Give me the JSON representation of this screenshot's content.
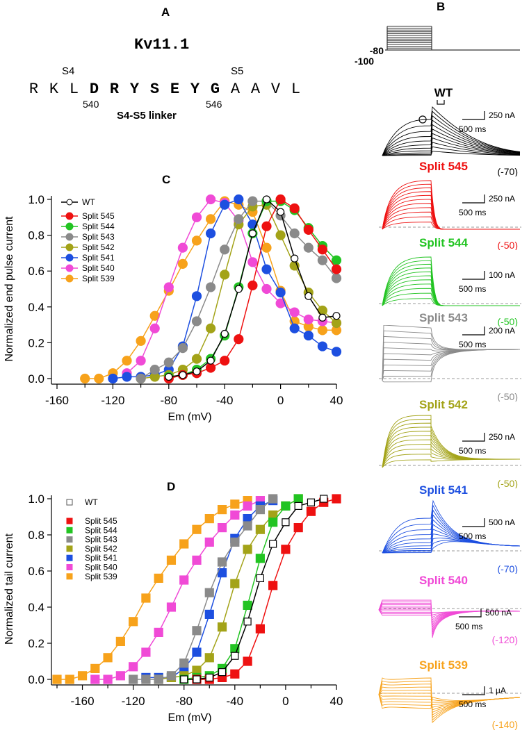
{
  "panelA": {
    "letter": "A",
    "protein": "Kv11.1",
    "s4_label": "S4",
    "s5_label": "S5",
    "sequence": [
      {
        "aa": "R",
        "bold": false
      },
      {
        "aa": "K",
        "bold": false
      },
      {
        "aa": "L",
        "bold": false
      },
      {
        "aa": "D",
        "bold": true
      },
      {
        "aa": "R",
        "bold": true
      },
      {
        "aa": "Y",
        "bold": true
      },
      {
        "aa": "S",
        "bold": true
      },
      {
        "aa": "E",
        "bold": true
      },
      {
        "aa": "Y",
        "bold": true
      },
      {
        "aa": "G",
        "bold": true
      },
      {
        "aa": "A",
        "bold": false
      },
      {
        "aa": "A",
        "bold": false
      },
      {
        "aa": "V",
        "bold": false
      },
      {
        "aa": "L",
        "bold": false
      }
    ],
    "pos_start": "540",
    "pos_end": "546",
    "linker_label": "S4-S5 linker"
  },
  "panelB": {
    "letter": "B",
    "protocol": {
      "hold_label": "-80",
      "tail_label": "-100"
    },
    "traces": [
      {
        "name": "WT",
        "color": "#000000",
        "amp_scale": "250 nA",
        "time_scale": "500 ms",
        "tail_v": "(-70)",
        "markers": [
          "circle",
          "square"
        ]
      },
      {
        "name": "Split 545",
        "color": "#ee1111",
        "amp_scale": "250 nA",
        "time_scale": "500 ms",
        "tail_v": "(-50)"
      },
      {
        "name": "Split 544",
        "color": "#22c422",
        "amp_scale": "100 nA",
        "time_scale": "500 ms",
        "tail_v": "(-50)"
      },
      {
        "name": "Split 543",
        "color": "#8a8a8a",
        "amp_scale": "200 nA",
        "time_scale": "500 ms",
        "tail_v": "(-50)"
      },
      {
        "name": "Split 542",
        "color": "#a3a318",
        "amp_scale": "250 nA",
        "time_scale": "500 ms",
        "tail_v": "(-50)"
      },
      {
        "name": "Split 541",
        "color": "#1d4fe0",
        "amp_scale": "500 nA",
        "time_scale": "500 ms",
        "tail_v": "(-70)"
      },
      {
        "name": "Split 540",
        "color": "#f04ad6",
        "amp_scale": "500 nA",
        "time_scale": "500 ms",
        "tail_v": "(-120)"
      },
      {
        "name": "Split 539",
        "color": "#f7a21b",
        "amp_scale": "1 µA",
        "time_scale": "500 ms",
        "tail_v": "(-140)"
      }
    ]
  },
  "chart_data": [
    {
      "id": "C",
      "type": "line",
      "title": "C",
      "xlabel": "Em (mV)",
      "ylabel": "Normalized end pulse current",
      "xlim": [
        -160,
        40
      ],
      "ylim": [
        0,
        1
      ],
      "xticks": [
        -160,
        -120,
        -80,
        -40,
        0,
        40
      ],
      "yticks": [
        0.0,
        0.2,
        0.4,
        0.6,
        0.8,
        1.0
      ],
      "ytick_labels": [
        "0.0",
        "0.2",
        "0.4",
        "0.6",
        "0.8",
        "1.0"
      ],
      "legend_position": "top-left",
      "marker": "circle",
      "series": [
        {
          "name": "WT",
          "color": "#000000",
          "open": true,
          "x": [
            -80,
            -70,
            -60,
            -50,
            -40,
            -30,
            -20,
            -10,
            0,
            10,
            20,
            30,
            40
          ],
          "y": [
            0.01,
            0.02,
            0.04,
            0.1,
            0.25,
            0.5,
            0.81,
            1.0,
            0.93,
            0.67,
            0.46,
            0.34,
            0.35
          ]
        },
        {
          "name": "Split 545",
          "color": "#ee1111",
          "x": [
            -80,
            -70,
            -60,
            -50,
            -40,
            -30,
            -20,
            -10,
            0,
            10,
            20,
            30,
            40
          ],
          "y": [
            0.0,
            0.02,
            0.03,
            0.06,
            0.1,
            0.22,
            0.52,
            0.85,
            1.0,
            0.95,
            0.83,
            0.72,
            0.61
          ]
        },
        {
          "name": "Split 544",
          "color": "#22c422",
          "x": [
            -80,
            -70,
            -60,
            -50,
            -40,
            -30,
            -20,
            -10,
            0,
            10,
            20,
            30,
            40
          ],
          "y": [
            0.01,
            0.02,
            0.05,
            0.11,
            0.24,
            0.51,
            0.81,
            0.99,
            0.99,
            0.94,
            0.84,
            0.74,
            0.66
          ]
        },
        {
          "name": "Split 543",
          "color": "#8a8a8a",
          "x": [
            -100,
            -90,
            -80,
            -70,
            -60,
            -50,
            -40,
            -30,
            -20,
            -10,
            0,
            10,
            20,
            30,
            40
          ],
          "y": [
            0.0,
            0.05,
            0.09,
            0.17,
            0.32,
            0.51,
            0.72,
            0.89,
            0.99,
            0.99,
            0.91,
            0.81,
            0.73,
            0.66,
            0.56
          ]
        },
        {
          "name": "Split 542",
          "color": "#a3a318",
          "x": [
            -100,
            -90,
            -80,
            -70,
            -60,
            -50,
            -40,
            -30,
            -20,
            -10,
            0,
            10,
            20,
            30,
            40
          ],
          "y": [
            0.0,
            0.01,
            0.02,
            0.05,
            0.11,
            0.28,
            0.58,
            0.86,
            0.96,
            0.97,
            0.8,
            0.63,
            0.48,
            0.38,
            0.31
          ]
        },
        {
          "name": "Split 541",
          "color": "#1d4fe0",
          "x": [
            -120,
            -110,
            -100,
            -90,
            -80,
            -70,
            -60,
            -50,
            -40,
            -30,
            -20,
            -10,
            0,
            10,
            20,
            30,
            40
          ],
          "y": [
            0.0,
            0.01,
            0.01,
            0.02,
            0.05,
            0.18,
            0.46,
            0.81,
            0.97,
            1.0,
            0.86,
            0.61,
            0.48,
            0.28,
            0.24,
            0.18,
            0.15
          ]
        },
        {
          "name": "Split 540",
          "color": "#f04ad6",
          "x": [
            -110,
            -100,
            -90,
            -80,
            -70,
            -60,
            -50,
            -40,
            -30,
            -20,
            -10,
            0,
            10,
            20,
            30,
            40
          ],
          "y": [
            0.03,
            0.1,
            0.28,
            0.51,
            0.73,
            0.9,
            1.0,
            0.98,
            0.88,
            0.65,
            0.5,
            0.42,
            0.37,
            0.33,
            0.32,
            0.31
          ]
        },
        {
          "name": "Split 539",
          "color": "#f7a21b",
          "x": [
            -140,
            -130,
            -120,
            -110,
            -100,
            -90,
            -80,
            -70,
            -60,
            -50,
            -40,
            -30,
            -20,
            -10,
            0,
            10,
            20,
            30,
            40
          ],
          "y": [
            0.0,
            0.0,
            0.03,
            0.1,
            0.21,
            0.35,
            0.49,
            0.64,
            0.77,
            0.89,
            0.99,
            0.97,
            0.93,
            0.73,
            0.49,
            0.32,
            0.29,
            0.27,
            0.27
          ]
        }
      ]
    },
    {
      "id": "D",
      "type": "line",
      "title": "D",
      "xlabel": "Em (mV)",
      "ylabel": "Normalized tail current",
      "xlim": [
        -180,
        40
      ],
      "ylim": [
        0,
        1
      ],
      "xticks": [
        -160,
        -120,
        -80,
        -40,
        0,
        40
      ],
      "yticks": [
        0.0,
        0.2,
        0.4,
        0.6,
        0.8,
        1.0
      ],
      "ytick_labels": [
        "0.0",
        "0.2",
        "0.4",
        "0.6",
        "0.8",
        "1.0"
      ],
      "legend_position": "top-left",
      "marker": "square",
      "series": [
        {
          "name": "WT",
          "color": "#000000",
          "open": true,
          "x": [
            -80,
            -70,
            -60,
            -50,
            -40,
            -30,
            -20,
            -10,
            0,
            10,
            20,
            30
          ],
          "y": [
            0.0,
            0.0,
            0.01,
            0.04,
            0.13,
            0.32,
            0.56,
            0.75,
            0.87,
            0.96,
            0.98,
            1.0
          ]
        },
        {
          "name": "Split 545",
          "color": "#ee1111",
          "x": [
            -70,
            -60,
            -50,
            -40,
            -30,
            -20,
            -10,
            0,
            10,
            20,
            30,
            40
          ],
          "y": [
            0.0,
            0.0,
            0.01,
            0.03,
            0.1,
            0.28,
            0.52,
            0.72,
            0.84,
            0.93,
            0.98,
            1.0
          ]
        },
        {
          "name": "Split 544",
          "color": "#22c422",
          "x": [
            -80,
            -70,
            -60,
            -50,
            -40,
            -30,
            -20,
            -10,
            0,
            10
          ],
          "y": [
            0.0,
            0.01,
            0.02,
            0.06,
            0.17,
            0.41,
            0.67,
            0.87,
            0.96,
            1.0
          ]
        },
        {
          "name": "Split 543",
          "color": "#8a8a8a",
          "x": [
            -120,
            -110,
            -100,
            -90,
            -80,
            -70,
            -60,
            -50,
            -40,
            -30,
            -20,
            -10
          ],
          "y": [
            0.0,
            0.0,
            0.0,
            0.02,
            0.09,
            0.27,
            0.48,
            0.65,
            0.76,
            0.85,
            0.94,
            1.0
          ]
        },
        {
          "name": "Split 542",
          "color": "#a3a318",
          "x": [
            -100,
            -90,
            -80,
            -70,
            -60,
            -50,
            -40,
            -30,
            -20,
            -10,
            0,
            10
          ],
          "y": [
            0.0,
            0.01,
            0.02,
            0.05,
            0.12,
            0.29,
            0.53,
            0.72,
            0.83,
            0.91,
            0.96,
            1.0
          ]
        },
        {
          "name": "Split 541",
          "color": "#1d4fe0",
          "x": [
            -110,
            -100,
            -90,
            -80,
            -70,
            -60,
            -50,
            -40,
            -30,
            -20,
            -10
          ],
          "y": [
            0.01,
            0.01,
            0.01,
            0.06,
            0.15,
            0.36,
            0.59,
            0.78,
            0.89,
            0.96,
            0.99
          ]
        },
        {
          "name": "Split 540",
          "color": "#f04ad6",
          "x": [
            -150,
            -140,
            -130,
            -120,
            -110,
            -100,
            -90,
            -80,
            -70,
            -60,
            -50,
            -40,
            -30,
            -20
          ],
          "y": [
            0.0,
            0.0,
            0.02,
            0.07,
            0.15,
            0.26,
            0.4,
            0.55,
            0.66,
            0.76,
            0.84,
            0.91,
            0.96,
            0.99
          ]
        },
        {
          "name": "Split 539",
          "color": "#f7a21b",
          "x": [
            -180,
            -170,
            -160,
            -150,
            -140,
            -130,
            -120,
            -110,
            -100,
            -90,
            -80,
            -70,
            -60,
            -50,
            -40,
            -30
          ],
          "y": [
            0.0,
            0.0,
            0.02,
            0.06,
            0.12,
            0.21,
            0.32,
            0.45,
            0.56,
            0.66,
            0.75,
            0.83,
            0.89,
            0.94,
            0.97,
            0.99
          ]
        }
      ]
    }
  ]
}
